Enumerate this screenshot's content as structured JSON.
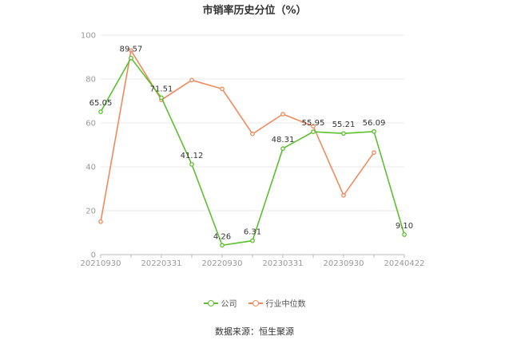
{
  "title": "市销率历史分位（%）",
  "source": "数据来源：恒生聚源",
  "legend": {
    "company": "公司",
    "industry": "行业中位数"
  },
  "colors": {
    "company": "#5cbf2f",
    "industry": "#f08a5d",
    "axis": "#999999",
    "grid": "#e8e8e8",
    "label": "#333333"
  },
  "chart_data": {
    "type": "line",
    "title": "市销率历史分位（%）",
    "xlabel": "",
    "ylabel": "",
    "ylim": [
      0,
      100
    ],
    "y_ticks": [
      0,
      20,
      40,
      60,
      80,
      100
    ],
    "grid": true,
    "legend_position": "bottom",
    "x_tick_labels": [
      "20210930",
      "20220331",
      "20220930",
      "20230331",
      "20230930",
      "20240422"
    ],
    "x_tick_positions": [
      0,
      2,
      4,
      6,
      8,
      10
    ],
    "series": [
      {
        "name": "公司",
        "values": [
          65.05,
          89.57,
          71.51,
          41.12,
          4.26,
          6.31,
          48.31,
          55.95,
          55.21,
          56.09,
          9.1
        ],
        "labels": [
          "65.05",
          "89.57",
          "71.51",
          "41.12",
          "4.26",
          "6.31",
          "48.31",
          "55.95",
          "55.21",
          "56.09",
          "9.10"
        ]
      },
      {
        "name": "行业中位数",
        "values": [
          15,
          93,
          70.5,
          79.5,
          75.5,
          55,
          64,
          58.5,
          27,
          46.5,
          null
        ]
      }
    ]
  }
}
